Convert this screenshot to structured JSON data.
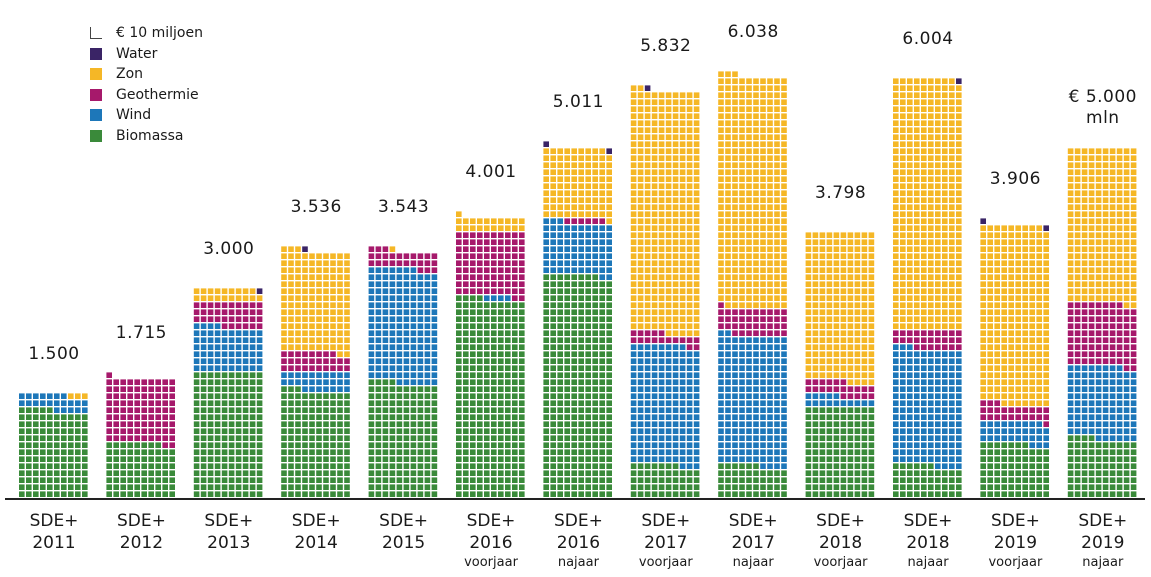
{
  "legend": {
    "unit_label": "€ 10 miljoen",
    "items": [
      {
        "key": "water",
        "label": "Water",
        "color": "#3a2466"
      },
      {
        "key": "zon",
        "label": "Zon",
        "color": "#f5b726"
      },
      {
        "key": "geothermie",
        "label": "Geothermie",
        "color": "#a6196b"
      },
      {
        "key": "wind",
        "label": "Wind",
        "color": "#1d77b9"
      },
      {
        "key": "biomassa",
        "label": "Biomassa",
        "color": "#3a8a3a"
      }
    ]
  },
  "chart_data": {
    "type": "bar",
    "subtype": "waffle-stacked",
    "unit": "1 square = € 10 miljoen",
    "title": "",
    "xlabel": "",
    "ylabel": "",
    "stack_order": [
      "biomassa",
      "wind",
      "geothermie",
      "zon",
      "water"
    ],
    "categories": [
      {
        "line1": "SDE+",
        "line2": "2011",
        "line3": ""
      },
      {
        "line1": "SDE+",
        "line2": "2012",
        "line3": ""
      },
      {
        "line1": "SDE+",
        "line2": "2013",
        "line3": ""
      },
      {
        "line1": "SDE+",
        "line2": "2014",
        "line3": ""
      },
      {
        "line1": "SDE+",
        "line2": "2015",
        "line3": ""
      },
      {
        "line1": "SDE+",
        "line2": "2016",
        "line3": "voorjaar"
      },
      {
        "line1": "SDE+",
        "line2": "2016",
        "line3": "najaar"
      },
      {
        "line1": "SDE+",
        "line2": "2017",
        "line3": "voorjaar"
      },
      {
        "line1": "SDE+",
        "line2": "2017",
        "line3": "najaar"
      },
      {
        "line1": "SDE+",
        "line2": "2018",
        "line3": "voorjaar"
      },
      {
        "line1": "SDE+",
        "line2": "2018",
        "line3": "najaar"
      },
      {
        "line1": "SDE+",
        "line2": "2019",
        "line3": "voorjaar"
      },
      {
        "line1": "SDE+",
        "line2": "2019",
        "line3": "najaar"
      }
    ],
    "totals_label": [
      "1.500",
      "1.715",
      "3.000",
      "3.536",
      "3.543",
      "4.001",
      "5.011",
      "5.832",
      "6.038",
      "3.798",
      "6.004",
      "3.906",
      "€ 5.000 mln"
    ],
    "totals_mln_eur": [
      1500,
      1715,
      3000,
      3536,
      3543,
      4001,
      5011,
      5832,
      6038,
      3798,
      6004,
      3906,
      5000
    ],
    "series": [
      {
        "name": "Biomassa",
        "key": "biomassa",
        "values": [
          125,
          78,
          180,
          153,
          164,
          284,
          318,
          47,
          46,
          130,
          46,
          77,
          84
        ]
      },
      {
        "name": "Wind",
        "key": "wind",
        "values": [
          22,
          0,
          64,
          27,
          163,
          4,
          75,
          171,
          186,
          15,
          167,
          32,
          104
        ]
      },
      {
        "name": "Geothermie",
        "key": "geothermie",
        "values": [
          0,
          93,
          36,
          28,
          26,
          92,
          6,
          17,
          39,
          21,
          27,
          24,
          90
        ]
      },
      {
        "name": "Zon",
        "key": "zon",
        "values": [
          3,
          0,
          19,
          145,
          1,
          21,
          100,
          347,
          332,
          214,
          359,
          256,
          222
        ]
      },
      {
        "name": "Water",
        "key": "water",
        "values": [
          0,
          0,
          1,
          1,
          0,
          0,
          2,
          1,
          0,
          0,
          1,
          2,
          0
        ]
      }
    ],
    "legend_position": "top-left",
    "grid": false
  }
}
